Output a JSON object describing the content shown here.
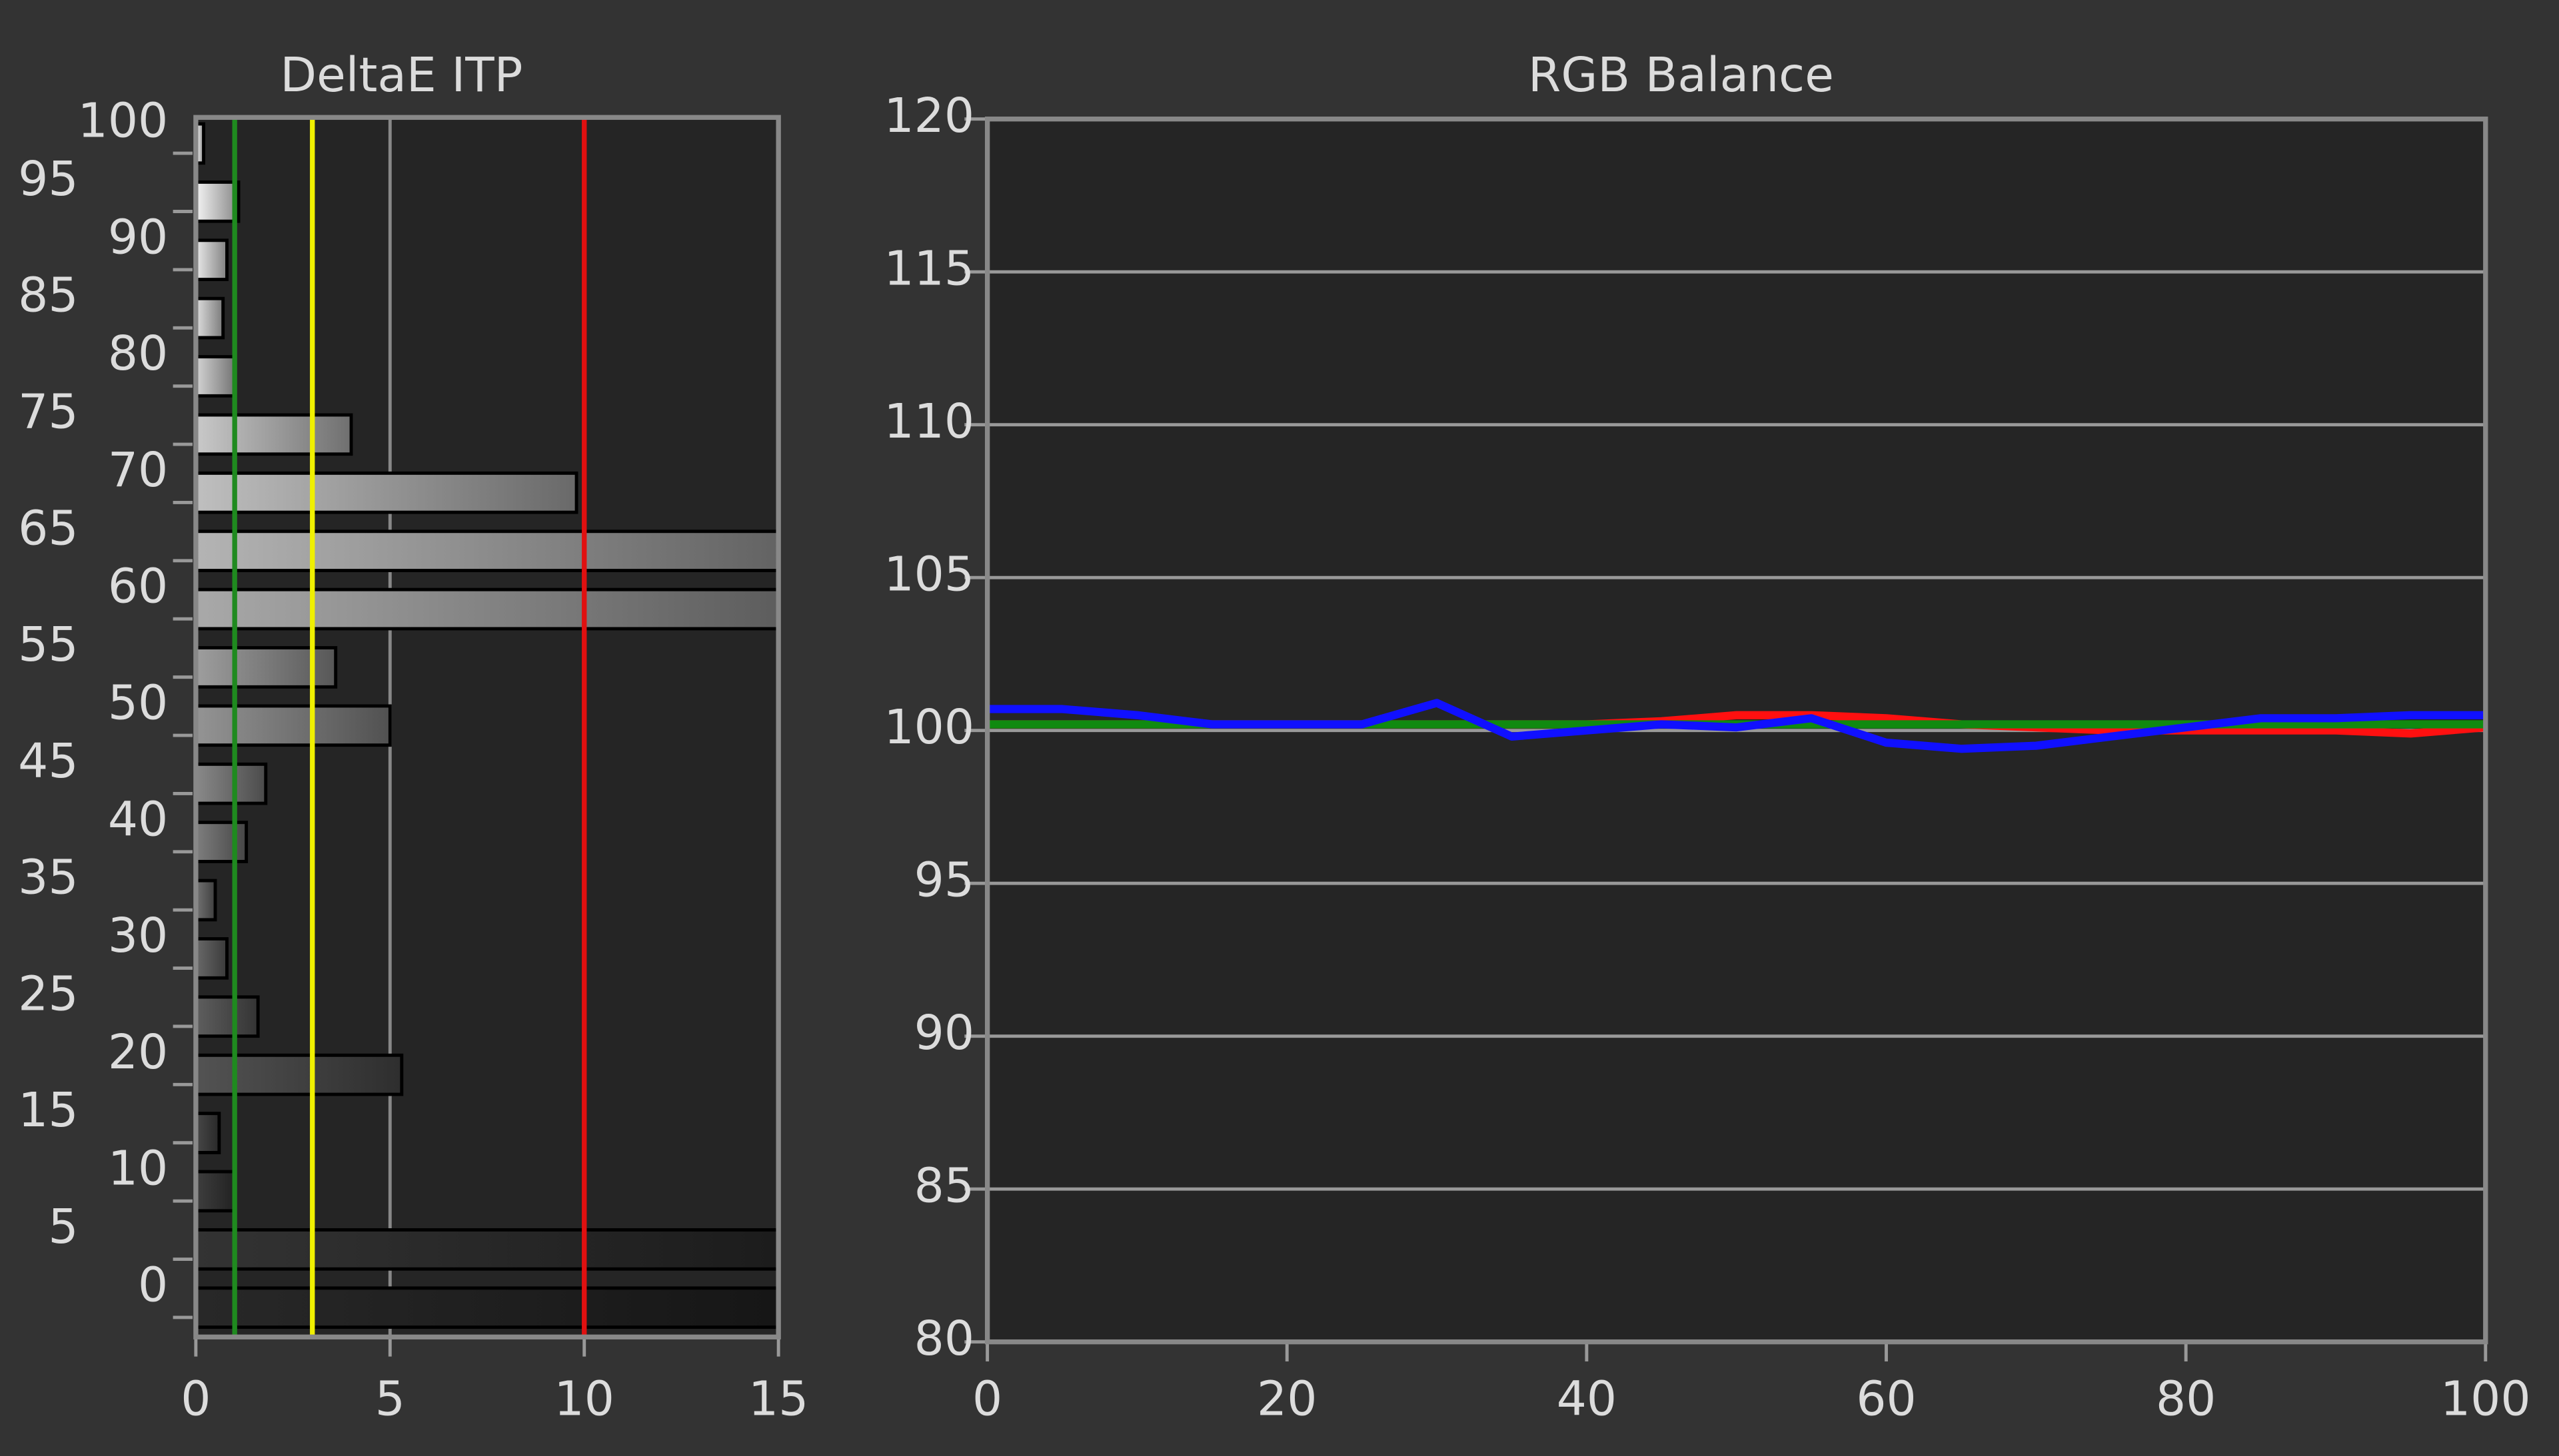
{
  "chart_data": [
    {
      "type": "barh",
      "title": "DeltaE ITP",
      "categories": [
        "0",
        "5",
        "10",
        "15",
        "20",
        "25",
        "30",
        "35",
        "40",
        "45",
        "50",
        "55",
        "60",
        "65",
        "70",
        "75",
        "80",
        "85",
        "90",
        "95",
        "100"
      ],
      "values": [
        15,
        15,
        1.0,
        0.6,
        5.3,
        1.6,
        0.8,
        0.5,
        1.3,
        1.8,
        5.0,
        3.6,
        15,
        15,
        9.8,
        4.0,
        1.0,
        0.7,
        0.8,
        1.1,
        0.2
      ],
      "xlim": [
        0,
        15
      ],
      "xticks": [
        0,
        5,
        10,
        15
      ],
      "grid": true,
      "reference_lines": [
        {
          "value": 1,
          "color": "#1f8a1f"
        },
        {
          "value": 3,
          "color": "#f0f000"
        },
        {
          "value": 10,
          "color": "#e01010"
        }
      ]
    },
    {
      "type": "line",
      "title": "RGB Balance",
      "x": [
        0,
        5,
        10,
        15,
        20,
        25,
        30,
        35,
        40,
        45,
        50,
        55,
        60,
        65,
        70,
        75,
        80,
        85,
        90,
        95,
        100
      ],
      "series": [
        {
          "name": "Red",
          "color": "#ff1010",
          "values": [
            100.2,
            100.2,
            100.2,
            100.2,
            100.2,
            100.2,
            100.2,
            100.2,
            100.2,
            100.3,
            100.5,
            100.5,
            100.4,
            100.2,
            100.1,
            100.0,
            100.0,
            100.0,
            100.0,
            99.9,
            100.1
          ]
        },
        {
          "name": "Green",
          "color": "#108a10",
          "values": [
            100.2,
            100.2,
            100.2,
            100.2,
            100.2,
            100.2,
            100.2,
            100.2,
            100.2,
            100.2,
            100.2,
            100.2,
            100.2,
            100.2,
            100.2,
            100.2,
            100.2,
            100.2,
            100.2,
            100.2,
            100.2
          ]
        },
        {
          "name": "Blue",
          "color": "#1010ff",
          "values": [
            100.7,
            100.7,
            100.5,
            100.2,
            100.2,
            100.2,
            100.9,
            99.8,
            100.0,
            100.2,
            100.1,
            100.4,
            99.6,
            99.4,
            99.5,
            99.8,
            100.1,
            100.4,
            100.4,
            100.5,
            100.5
          ]
        }
      ],
      "xlim": [
        0,
        100
      ],
      "xticks": [
        0,
        20,
        40,
        60,
        80,
        100
      ],
      "ylim": [
        80,
        120
      ],
      "yticks": [
        80,
        85,
        90,
        95,
        100,
        105,
        110,
        115,
        120
      ],
      "grid": true
    }
  ]
}
